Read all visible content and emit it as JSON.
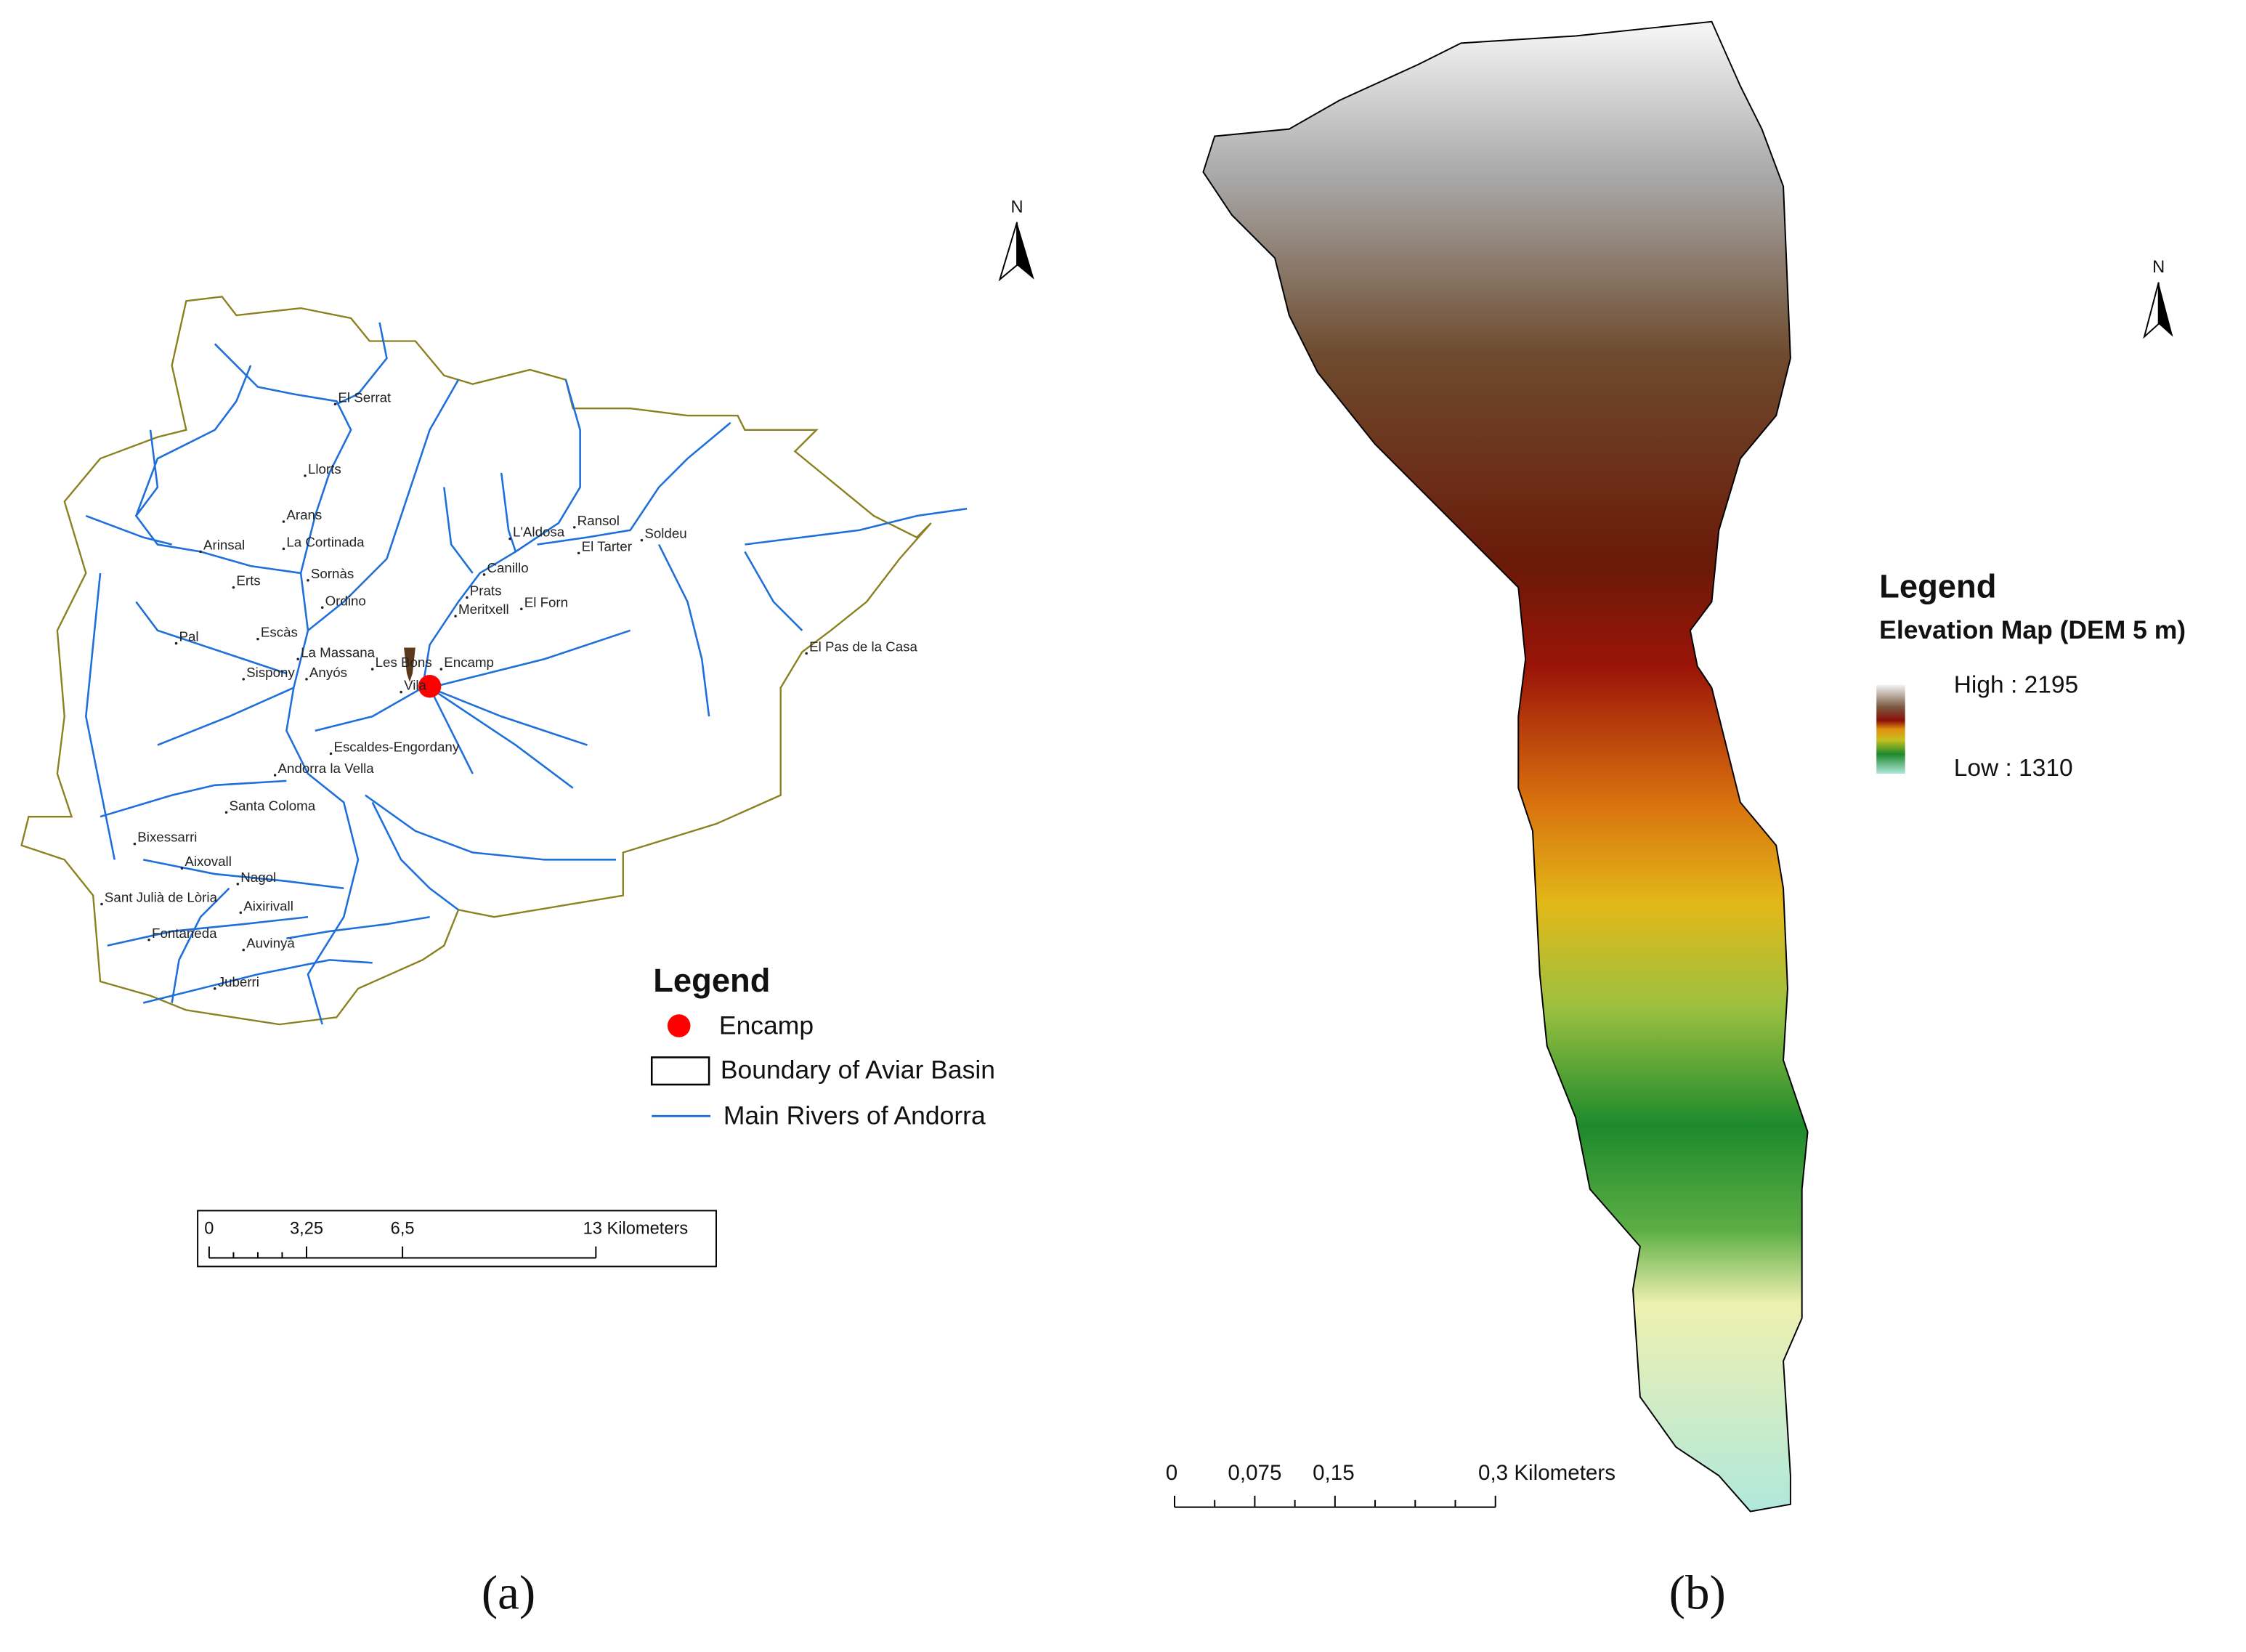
{
  "panel_a": {
    "north": "N",
    "place_names": [
      "El Serrat",
      "Llorts",
      "Arans",
      "La Cortinada",
      "Arinsal",
      "L'Aldosa",
      "Ransol",
      "El Tarter",
      "Soldeu",
      "Canillo",
      "Erts",
      "Sornàs",
      "Ordino",
      "Prats",
      "El Forn",
      "Meritxell",
      "Pal",
      "Escàs",
      "La Massana",
      "Les Bons",
      "Encamp",
      "Sispony",
      "Anyós",
      "Vila",
      "El Pas de la Casa",
      "Escaldes-Engordany",
      "Andorra la Vella",
      "Santa Coloma",
      "Bixessarri",
      "Aixovall",
      "Nagol",
      "Sant Julià de Lòria",
      "Aixirivall",
      "Fontaneda",
      "Auvinyà",
      "Juberri"
    ],
    "legend": {
      "title": "Legend",
      "items": [
        "Encamp",
        "Boundary of Aviar Basin",
        "Main Rivers of Andorra"
      ]
    },
    "scale_bar": [
      "0",
      "3,25",
      "6,5",
      "13 Kilometers"
    ],
    "caption": "(a)"
  },
  "panel_b": {
    "north": "N",
    "legend": {
      "title": "Legend",
      "subtitle": "Elevation Map (DEM 5 m)",
      "high": "High : 2195",
      "low": "Low : 1310"
    },
    "scale_bar": [
      "0",
      "0,075",
      "0,15",
      "0,3 Kilometers"
    ],
    "caption": "(b)"
  }
}
